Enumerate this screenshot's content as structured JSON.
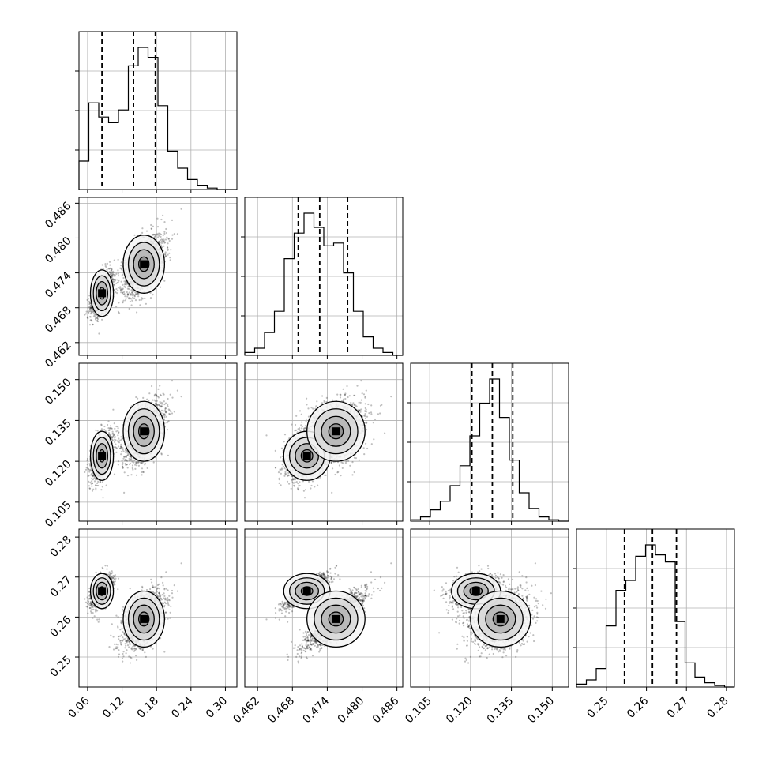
{
  "chart_data": {
    "type": "corner",
    "grid": true,
    "quantile_lines": [
      0.16,
      0.5,
      0.84
    ],
    "params": [
      {
        "range": [
          0.045,
          0.32
        ],
        "ticks": [
          0.06,
          0.12,
          0.18,
          0.24,
          0.3
        ],
        "tick_labels": [
          "0.06",
          "0.12",
          "0.18",
          "0.24",
          "0.30"
        ],
        "quantiles": [
          0.085,
          0.14,
          0.178
        ],
        "hist": [
          0.2,
          0.61,
          0.51,
          0.47,
          0.56,
          0.87,
          1.0,
          0.93,
          0.59,
          0.27,
          0.15,
          0.07,
          0.03,
          0.01,
          0.0,
          0.0
        ]
      },
      {
        "range": [
          0.4598,
          0.487
        ],
        "ticks": [
          0.462,
          0.468,
          0.474,
          0.48,
          0.486
        ],
        "tick_labels": [
          "0.462",
          "0.468",
          "0.474",
          "0.480",
          "0.486"
        ],
        "quantiles": [
          0.469,
          0.4727,
          0.4775
        ],
        "hist": [
          0.02,
          0.05,
          0.16,
          0.31,
          0.68,
          0.86,
          1.0,
          0.9,
          0.77,
          0.79,
          0.58,
          0.31,
          0.13,
          0.05,
          0.02,
          0.0
        ]
      },
      {
        "range": [
          0.098,
          0.156
        ],
        "ticks": [
          0.105,
          0.12,
          0.135,
          0.15
        ],
        "tick_labels": [
          "0.105",
          "0.120",
          "0.135",
          "0.150"
        ],
        "quantiles": [
          0.1205,
          0.128,
          0.1355
        ],
        "hist": [
          0.01,
          0.03,
          0.08,
          0.14,
          0.25,
          0.39,
          0.6,
          0.83,
          1.0,
          0.73,
          0.43,
          0.2,
          0.09,
          0.03,
          0.01,
          0.0
        ]
      },
      {
        "range": [
          0.2425,
          0.282
        ],
        "ticks": [
          0.25,
          0.26,
          0.27,
          0.28
        ],
        "tick_labels": [
          "0.25",
          "0.26",
          "0.27",
          "0.28"
        ],
        "quantiles": [
          0.2545,
          0.2615,
          0.2675
        ],
        "hist": [
          0.02,
          0.05,
          0.13,
          0.43,
          0.68,
          0.75,
          0.92,
          1.0,
          0.93,
          0.88,
          0.46,
          0.17,
          0.07,
          0.03,
          0.01,
          0.0
        ]
      }
    ],
    "modes": [
      {
        "center": [
          0.085,
          0.4705,
          0.122,
          0.2665
        ],
        "spread": [
          0.01,
          0.002,
          0.0045,
          0.0022
        ],
        "weight": 0.35
      },
      {
        "center": [
          0.158,
          0.4755,
          0.131,
          0.2595
        ],
        "spread": [
          0.018,
          0.0025,
          0.0055,
          0.0035
        ],
        "weight": 0.65
      }
    ]
  }
}
